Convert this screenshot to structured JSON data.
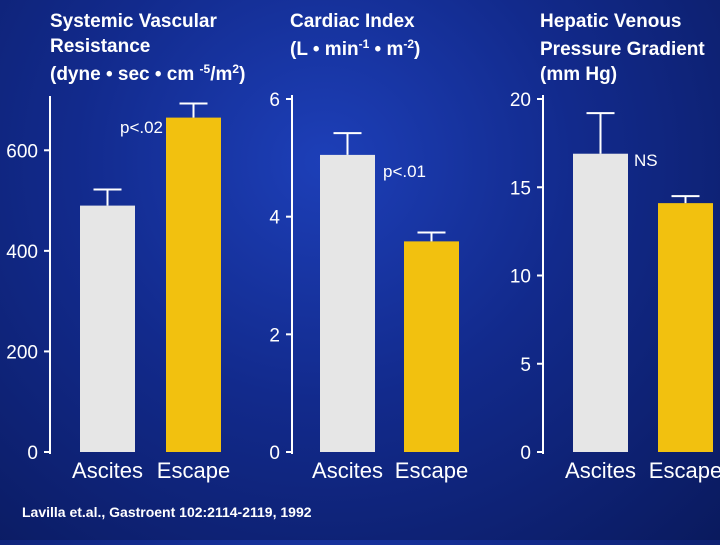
{
  "citation": "Lavilla et.al., Gastroent  102:2114-2119, 1992",
  "colors": {
    "ascites": "#e6e6e6",
    "escape": "#f2c10f",
    "axis": "#ffffff"
  },
  "chart_data": [
    {
      "type": "bar",
      "title_lines": [
        "Systemic Vascular",
        "Resistance"
      ],
      "unit_line": "(dyne • sec • cm -5/m2)",
      "categories": [
        "Ascites",
        "Escape"
      ],
      "values": [
        490,
        665
      ],
      "errors": [
        32,
        28
      ],
      "ylim": [
        0,
        700
      ],
      "yticks": [
        0,
        200,
        400,
        600
      ],
      "ytick_labels": [
        "0",
        "200",
        "400",
        "600"
      ],
      "annotation": "p<.02"
    },
    {
      "type": "bar",
      "title_lines": [
        "Cardiac Index"
      ],
      "unit_line": "(L • min-1 • m-2)",
      "categories": [
        "Ascites",
        "Escape"
      ],
      "values": [
        5.05,
        3.58
      ],
      "errors": [
        0.37,
        0.15
      ],
      "ylim": [
        0,
        6
      ],
      "yticks": [
        0,
        2,
        4,
        6
      ],
      "ytick_labels": [
        "0",
        "2",
        "4",
        "6"
      ],
      "annotation": "p<.01"
    },
    {
      "type": "bar",
      "title_lines": [
        "Hepatic Venous",
        "Pressure Gradient"
      ],
      "unit_line": "(mm Hg)",
      "categories": [
        "Ascites",
        "Escape"
      ],
      "values": [
        16.9,
        14.1
      ],
      "errors": [
        2.3,
        0.4
      ],
      "ylim": [
        0,
        20
      ],
      "yticks": [
        0,
        5,
        10,
        15,
        20
      ],
      "ytick_labels": [
        "0",
        "5",
        "10",
        "15",
        "20"
      ],
      "annotation": "NS"
    }
  ]
}
